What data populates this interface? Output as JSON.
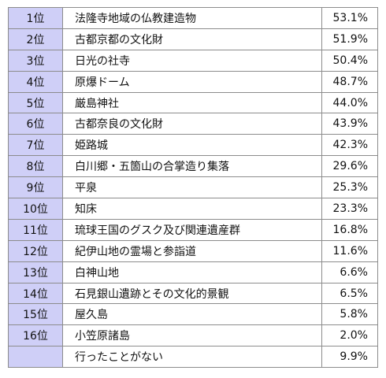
{
  "ranking": {
    "rows": [
      {
        "rank": "1位",
        "name": "法隆寺地域の仏教建造物",
        "percent": "53.1%"
      },
      {
        "rank": "2位",
        "name": "古都京都の文化財",
        "percent": "51.9%"
      },
      {
        "rank": "3位",
        "name": "日光の社寺",
        "percent": "50.4%"
      },
      {
        "rank": "4位",
        "name": "原爆ドーム",
        "percent": "48.7%"
      },
      {
        "rank": "5位",
        "name": "厳島神社",
        "percent": "44.0%"
      },
      {
        "rank": "6位",
        "name": "古都奈良の文化財",
        "percent": "43.9%"
      },
      {
        "rank": "7位",
        "name": "姫路城",
        "percent": "42.3%"
      },
      {
        "rank": "8位",
        "name": "白川郷・五箇山の合掌造り集落",
        "percent": "29.6%"
      },
      {
        "rank": "9位",
        "name": "平泉",
        "percent": "25.3%"
      },
      {
        "rank": "10位",
        "name": "知床",
        "percent": "23.3%"
      },
      {
        "rank": "11位",
        "name": "琉球王国のグスク及び関連遺産群",
        "percent": "16.8%"
      },
      {
        "rank": "12位",
        "name": "紀伊山地の霊場と参詣道",
        "percent": "11.6%"
      },
      {
        "rank": "13位",
        "name": "白神山地",
        "percent": "6.6%"
      },
      {
        "rank": "14位",
        "name": "石見銀山遺跡とその文化的景観",
        "percent": "6.5%"
      },
      {
        "rank": "15位",
        "name": "屋久島",
        "percent": "5.8%"
      },
      {
        "rank": "16位",
        "name": "小笠原諸島",
        "percent": "2.0%"
      },
      {
        "rank": "",
        "name": "行ったことがない",
        "percent": "9.9%"
      }
    ]
  }
}
